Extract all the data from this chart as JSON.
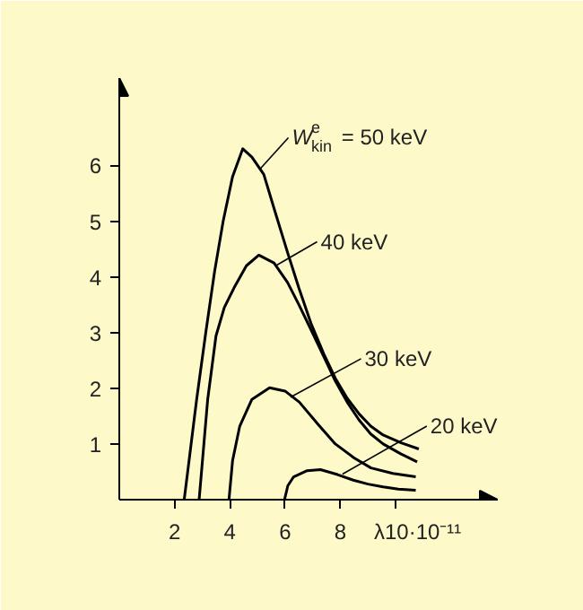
{
  "chart_data": {
    "type": "line",
    "series": [
      {
        "color": "#000000",
        "x": [
          2.35,
          2.8,
          3.13,
          3.45,
          3.76,
          4.1,
          4.47,
          4.8,
          5.23,
          5.65,
          6.09,
          6.5,
          6.95,
          7.4,
          7.82,
          8.25,
          8.68,
          9.1,
          9.55,
          10.2,
          10.84
        ],
        "values": [
          0,
          1.8,
          3.0,
          4.1,
          5.0,
          5.8,
          6.3,
          6.15,
          5.84,
          5.15,
          4.44,
          3.8,
          3.15,
          2.62,
          2.18,
          1.82,
          1.54,
          1.32,
          1.16,
          1.02,
          0.91
        ]
      },
      {
        "color": "#000000",
        "x": [
          2.89,
          3.2,
          3.5,
          3.8,
          4.15,
          4.6,
          5.05,
          5.6,
          6.09,
          6.5,
          6.95,
          7.4,
          7.82,
          8.25,
          8.68,
          9.1,
          9.55,
          10.2,
          10.78
        ],
        "values": [
          0,
          1.8,
          2.94,
          3.45,
          3.8,
          4.2,
          4.39,
          4.25,
          3.9,
          3.5,
          3.04,
          2.57,
          2.13,
          1.75,
          1.43,
          1.18,
          1.0,
          0.82,
          0.68
        ]
      },
      {
        "color": "#000000",
        "x": [
          3.97,
          4.1,
          4.36,
          4.8,
          5.44,
          6.0,
          6.52,
          7.2,
          7.82,
          8.5,
          9.11,
          9.9,
          10.73
        ],
        "values": [
          0,
          0.7,
          1.32,
          1.8,
          2.01,
          1.95,
          1.75,
          1.35,
          1.0,
          0.75,
          0.57,
          0.47,
          0.41
        ]
      },
      {
        "color": "#000000",
        "x": [
          5.98,
          6.1,
          6.31,
          6.8,
          7.28,
          7.9,
          8.47,
          9.0,
          9.55,
          10.1,
          10.73
        ],
        "values": [
          0,
          0.25,
          0.41,
          0.52,
          0.54,
          0.45,
          0.35,
          0.28,
          0.23,
          0.19,
          0.17
        ]
      }
    ],
    "xlim": [
      0,
      13.7
    ],
    "ylim": [
      0,
      7.57
    ],
    "xticks": [
      2,
      4,
      6,
      8,
      {
        "value": 10,
        "label": null
      }
    ],
    "yticks": [
      1,
      2,
      3,
      4,
      5,
      6
    ],
    "xlabel": "λ10·10⁻¹¹",
    "annotations": [
      {
        "text": "W$^{e}$$_{kin}$ = 50 keV",
        "x": 5.12,
        "y": 5.95
      },
      {
        "text": "40 keV",
        "x": 5.66,
        "y": 4.2
      },
      {
        "text": "30 keV",
        "x": 6.2,
        "y": 1.84
      },
      {
        "text": "20 keV",
        "x": 8.08,
        "y": 0.46
      }
    ],
    "grid": false,
    "marker": "none",
    "line_style": "solid"
  }
}
